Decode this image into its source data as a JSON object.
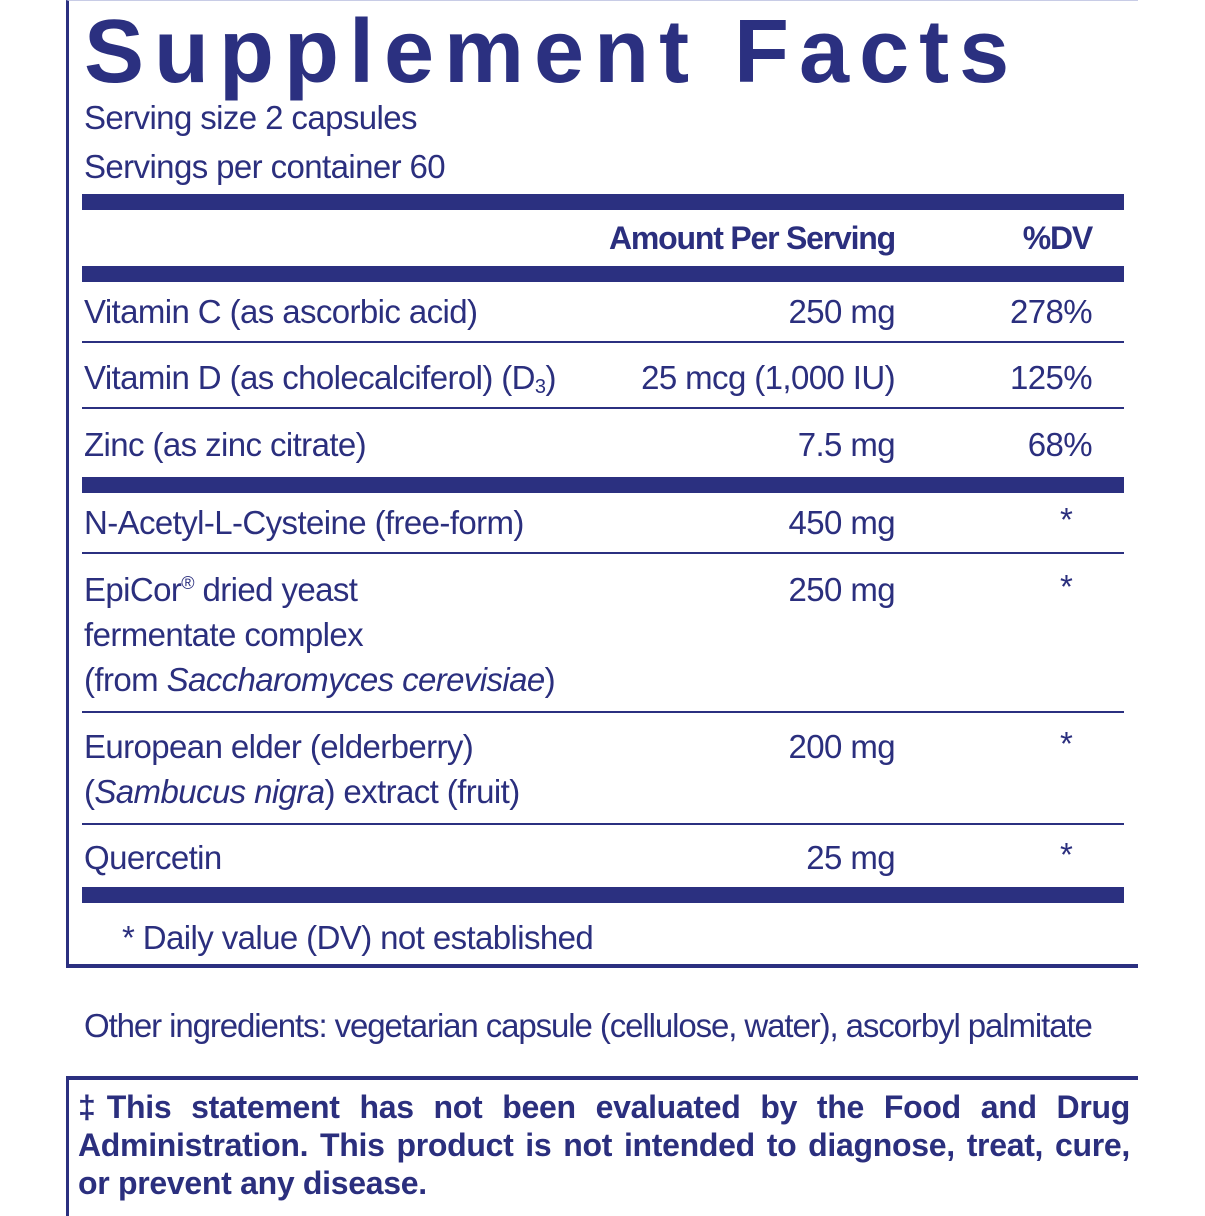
{
  "title": "Supplement Facts",
  "serving_size": "Serving size  2 capsules",
  "servings_per_container": "Servings per container  60",
  "columns": {
    "amount": "Amount Per Serving",
    "dv": "%DV"
  },
  "rows": [
    {
      "name": "Vitamin C (as ascorbic acid)",
      "amount": "250 mg",
      "dv": "278%"
    },
    {
      "name": "Vitamin D (as cholecalciferol) (D",
      "name_sub": "3",
      "name_end": ")",
      "amount": "25 mcg (1,000 IU)",
      "dv": "125%"
    },
    {
      "name": "Zinc (as zinc citrate)",
      "amount": "7.5 mg",
      "dv": "68%"
    },
    {
      "name": "N-Acetyl-L-Cysteine (free-form)",
      "amount": "450 mg",
      "dv": "*"
    },
    {
      "name_line1": "EpiCor",
      "name_reg": "®",
      "name_line1_end": " dried yeast",
      "name_line2": "fermentate complex",
      "name_line3_pre": "(from ",
      "name_line3_italic": "Saccharomyces cerevisiae",
      "name_line3_post": ")",
      "amount": "250 mg",
      "dv": "*"
    },
    {
      "name_line1": "European elder (elderberry)",
      "name_line2_pre": "(",
      "name_line2_italic": "Sambucus nigra",
      "name_line2_post": ") extract (fruit)",
      "amount": "200 mg",
      "dv": "*"
    },
    {
      "name": "Quercetin",
      "amount": "25 mg",
      "dv": "*"
    }
  ],
  "footnote": "* Daily value (DV) not established",
  "other_ingredients": "Other ingredients: vegetarian capsule (cellulose, water), ascorbyl palmitate",
  "disclaimer": "‡This statement has not been evaluated by the Food and Drug Administration. This product is not intended to diagnose, treat, cure, or prevent any disease.",
  "colors": {
    "primary": "#2b3080"
  }
}
